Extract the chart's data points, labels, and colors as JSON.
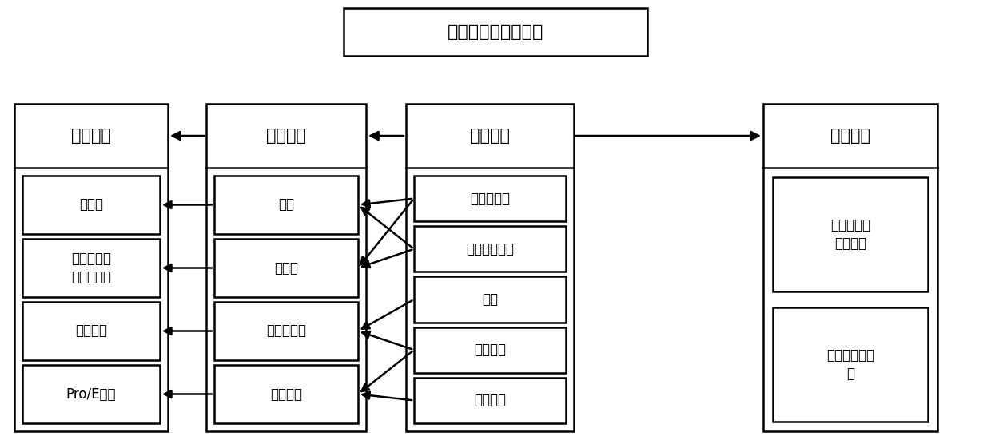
{
  "title": "索网反射面星载天线",
  "bg_color": "#ffffff",
  "box_color": "#ffffff",
  "border_color": "#000000",
  "text_color": "#000000",
  "col1_label": "几何信息",
  "col2_label": "几何特性",
  "col3_label": "基本部分",
  "col4_label": "连接信息",
  "col1_items": [
    "两端点",
    "轴线两端点\n圆柱面半径",
    "三个顶点",
    "Pro/E文件"
  ],
  "col2_items": [
    "直线",
    "圆柱面",
    "三角形平面",
    "薄壁立体"
  ],
  "col3_items": [
    "柔性支撑臂",
    "周边桁架构件",
    "索网",
    "反射丝网",
    "桁架接头"
  ],
  "col4_items": [
    "被连接两个\n部分标志",
    "连接位置点坐\n标"
  ],
  "font_size_title": 16,
  "font_size_label": 15,
  "font_size_item": 12
}
